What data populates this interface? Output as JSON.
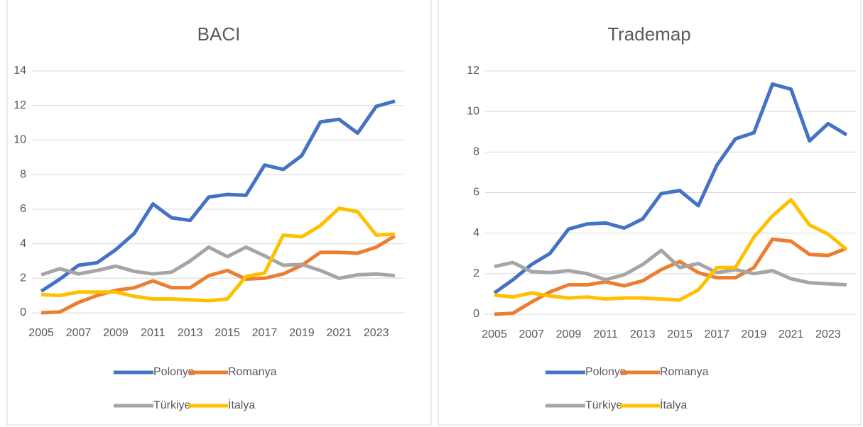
{
  "chart_data": [
    {
      "type": "line",
      "title": "BACI",
      "categories": [
        "2005",
        null,
        "2007",
        null,
        "2009",
        null,
        "2011",
        null,
        "2013",
        null,
        "2015",
        null,
        "2017",
        null,
        "2019",
        null,
        "2021",
        null,
        "2023",
        null
      ],
      "series": [
        {
          "name": "Polonya",
          "color": "#4472c4",
          "values": [
            1.25,
            1.95,
            2.75,
            2.9,
            3.65,
            4.6,
            6.3,
            5.5,
            5.35,
            6.7,
            6.85,
            6.8,
            8.55,
            8.3,
            9.1,
            11.05,
            11.2,
            10.4,
            11.95,
            12.25
          ]
        },
        {
          "name": "Romanya",
          "color": "#ed7d31",
          "values": [
            0,
            0.05,
            0.6,
            1.0,
            1.3,
            1.45,
            1.85,
            1.45,
            1.45,
            2.15,
            2.45,
            1.95,
            2.0,
            2.25,
            2.75,
            3.5,
            3.5,
            3.45,
            3.8,
            4.45
          ]
        },
        {
          "name": "Türkiye",
          "color": "#a5a5a5",
          "values": [
            2.2,
            2.55,
            2.25,
            2.45,
            2.7,
            2.4,
            2.25,
            2.35,
            3.0,
            3.8,
            3.25,
            3.8,
            3.3,
            2.75,
            2.8,
            2.45,
            2.0,
            2.2,
            2.25,
            2.15
          ]
        },
        {
          "name": "İtalya",
          "color": "#ffc000",
          "values": [
            1.05,
            1.0,
            1.2,
            1.2,
            1.2,
            0.95,
            0.8,
            0.8,
            0.75,
            0.7,
            0.8,
            2.1,
            2.3,
            4.5,
            4.4,
            5.05,
            6.05,
            5.85,
            4.5,
            4.55
          ]
        }
      ],
      "ylim": [
        0,
        14
      ],
      "yticks": [
        0,
        2,
        4,
        6,
        8,
        10,
        12,
        14
      ],
      "grid": true,
      "legend": "bottom"
    },
    {
      "type": "line",
      "title": "Trademap",
      "categories": [
        "2005",
        null,
        "2007",
        null,
        "2009",
        null,
        "2011",
        null,
        "2013",
        null,
        "2015",
        null,
        "2017",
        null,
        "2019",
        null,
        "2021",
        null,
        "2023",
        null
      ],
      "series": [
        {
          "name": "Polonya",
          "color": "#4472c4",
          "values": [
            1.05,
            1.7,
            2.45,
            3.0,
            4.2,
            4.45,
            4.5,
            4.25,
            4.7,
            5.95,
            6.1,
            5.35,
            7.35,
            8.65,
            8.95,
            11.35,
            11.1,
            8.55,
            9.4,
            8.85
          ]
        },
        {
          "name": "Romanya",
          "color": "#ed7d31",
          "values": [
            0,
            0.05,
            0.6,
            1.1,
            1.45,
            1.45,
            1.6,
            1.4,
            1.65,
            2.2,
            2.6,
            2.05,
            1.8,
            1.8,
            2.3,
            3.7,
            3.6,
            2.95,
            2.9,
            3.25
          ]
        },
        {
          "name": "Türkiye",
          "color": "#a5a5a5",
          "values": [
            2.35,
            2.55,
            2.1,
            2.05,
            2.15,
            2.0,
            1.7,
            1.95,
            2.45,
            3.15,
            2.3,
            2.5,
            2.05,
            2.2,
            2.0,
            2.15,
            1.75,
            1.55,
            1.5,
            1.45
          ]
        },
        {
          "name": "İtalya",
          "color": "#ffc000",
          "values": [
            0.95,
            0.85,
            1.05,
            0.9,
            0.8,
            0.85,
            0.75,
            0.8,
            0.8,
            0.75,
            0.7,
            1.2,
            2.3,
            2.3,
            3.8,
            4.85,
            5.65,
            4.4,
            3.95,
            3.2
          ]
        }
      ],
      "ylim": [
        0,
        12
      ],
      "yticks": [
        0,
        2,
        4,
        6,
        8,
        10,
        12
      ],
      "grid": true,
      "legend": "bottom"
    }
  ]
}
